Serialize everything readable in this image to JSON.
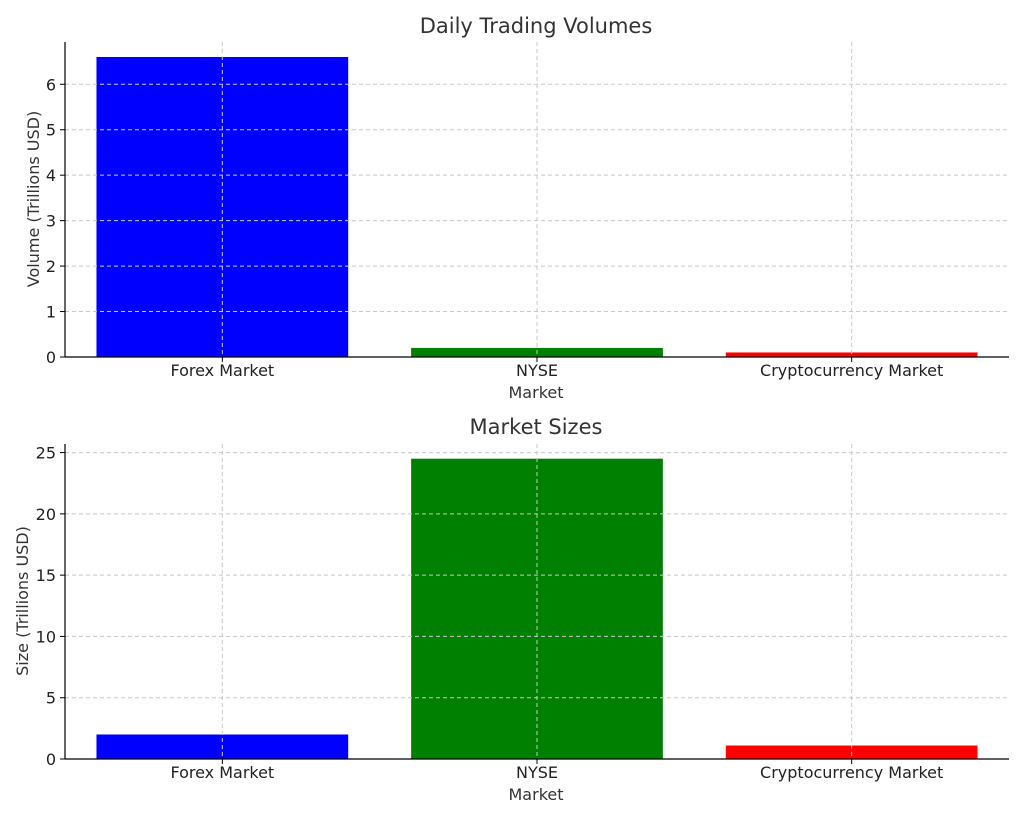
{
  "chart_data": [
    {
      "type": "bar",
      "title": "Daily Trading Volumes",
      "xlabel": "Market",
      "ylabel": "Volume (Trillions USD)",
      "categories": [
        "Forex Market",
        "NYSE",
        "Cryptocurrency Market"
      ],
      "values": [
        6.6,
        0.2,
        0.1
      ],
      "colors": [
        "#0000ff",
        "#008000",
        "#ff0000"
      ],
      "ylim": [
        0,
        6.93
      ],
      "yticks": [
        0,
        1,
        2,
        3,
        4,
        5,
        6
      ],
      "grid": true
    },
    {
      "type": "bar",
      "title": "Market Sizes",
      "xlabel": "Market",
      "ylabel": "Size (Trillions USD)",
      "categories": [
        "Forex Market",
        "NYSE",
        "Cryptocurrency Market"
      ],
      "values": [
        2.0,
        24.5,
        1.1
      ],
      "colors": [
        "#0000ff",
        "#008000",
        "#ff0000"
      ],
      "ylim": [
        0,
        25.7
      ],
      "yticks": [
        0,
        5,
        10,
        15,
        20,
        25
      ],
      "grid": true
    }
  ]
}
